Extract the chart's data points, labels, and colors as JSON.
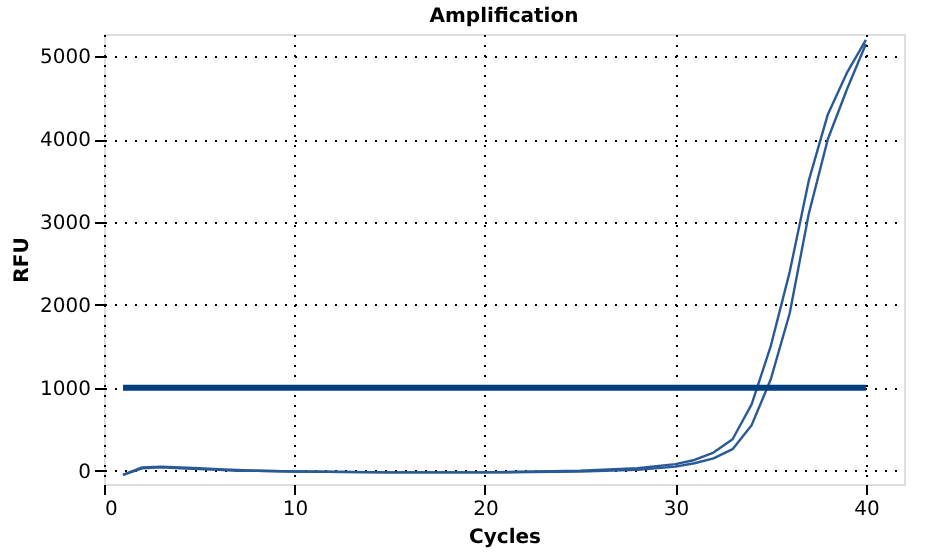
{
  "chart_data": {
    "type": "line",
    "title": "Amplification",
    "xlabel": "Cycles",
    "ylabel": "RFU",
    "xlim": [
      0,
      42
    ],
    "ylim": [
      -160,
      5270
    ],
    "xticks": [
      0,
      10,
      20,
      30,
      40
    ],
    "yticks": [
      0,
      1000,
      2000,
      3000,
      4000,
      5000
    ],
    "grid": true,
    "line_style": "solid",
    "marker": "none",
    "series": [
      {
        "color": "#2a5a96",
        "x": [
          1,
          2,
          3,
          4,
          5,
          6,
          7,
          8,
          10,
          15,
          20,
          25,
          28,
          30,
          31,
          32,
          33,
          34,
          35,
          36,
          37,
          38,
          39,
          40
        ],
        "values": [
          -50,
          40,
          50,
          40,
          30,
          20,
          10,
          0,
          -10,
          -20,
          -20,
          0,
          30,
          80,
          130,
          220,
          380,
          800,
          1500,
          2400,
          3500,
          4300,
          4800,
          5200
        ]
      },
      {
        "color": "#2a5a96",
        "x": [
          1,
          2,
          3,
          4,
          5,
          6,
          7,
          8,
          10,
          15,
          20,
          25,
          28,
          30,
          31,
          32,
          33,
          34,
          35,
          36,
          37,
          38,
          39,
          40
        ],
        "values": [
          -50,
          30,
          40,
          30,
          20,
          10,
          0,
          0,
          -10,
          -20,
          -20,
          -10,
          10,
          50,
          90,
          150,
          260,
          550,
          1100,
          1900,
          3100,
          4000,
          4600,
          5150
        ]
      }
    ],
    "ref_lines": [
      {
        "axis": "y",
        "value": 1000,
        "color": "#003f7f",
        "line_style": "solid"
      }
    ]
  }
}
